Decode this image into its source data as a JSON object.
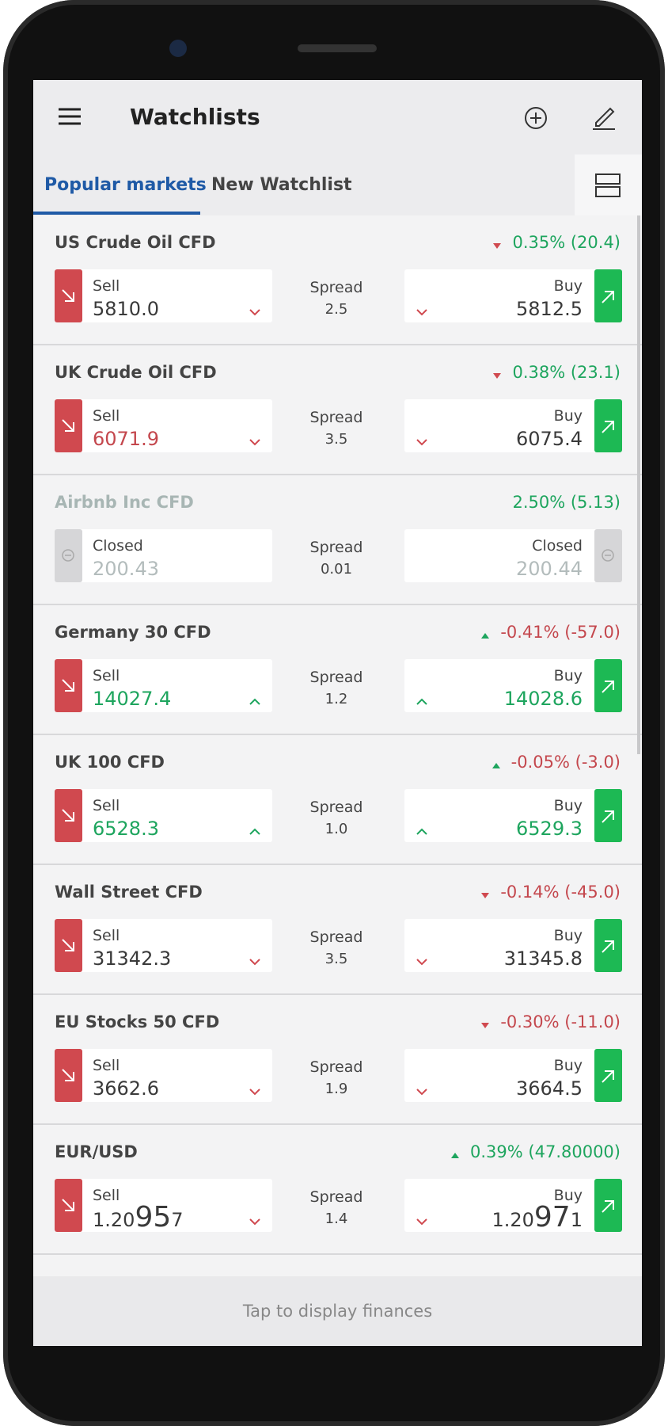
{
  "header": {
    "title": "Watchlists"
  },
  "tabs": [
    "Popular markets",
    "New Watchlist"
  ],
  "markets": [
    {
      "name": "US Crude Oil CFD",
      "trend": "down",
      "change": "0.35% (20.4)",
      "change_color": "#1ea55e",
      "sell_label": "Sell",
      "sell": "5810.0",
      "sell_color": "#3a3a3a",
      "spread_label": "Spread",
      "spread": "2.5",
      "buy_label": "Buy",
      "buy": "5812.5",
      "buy_color": "#3a3a3a",
      "chevron": "down",
      "closed": false
    },
    {
      "name": "UK Crude Oil CFD",
      "trend": "down",
      "change": "0.38% (23.1)",
      "change_color": "#1ea55e",
      "sell_label": "Sell",
      "sell": "6071.9",
      "sell_color": "#c4474d",
      "spread_label": "Spread",
      "spread": "3.5",
      "buy_label": "Buy",
      "buy": "6075.4",
      "buy_color": "#3a3a3a",
      "chevron": "down",
      "closed": false
    },
    {
      "name": "Airbnb Inc CFD",
      "trend": null,
      "change": "2.50% (5.13)",
      "change_color": "#1ea55e",
      "sell_label": "Closed",
      "sell": "200.43",
      "sell_color": "#b3bcbc",
      "spread_label": "Spread",
      "spread": "0.01",
      "buy_label": "Closed",
      "buy": "200.44",
      "buy_color": "#b3bcbc",
      "chevron": null,
      "closed": true
    },
    {
      "name": "Germany 30 CFD",
      "trend": "up",
      "change": "-0.41% (-57.0)",
      "change_color": "#c4474d",
      "sell_label": "Sell",
      "sell": "14027.4",
      "sell_color": "#1ea55e",
      "spread_label": "Spread",
      "spread": "1.2",
      "buy_label": "Buy",
      "buy": "14028.6",
      "buy_color": "#1ea55e",
      "chevron": "up",
      "closed": false
    },
    {
      "name": "UK 100 CFD",
      "trend": "up",
      "change": "-0.05% (-3.0)",
      "change_color": "#c4474d",
      "sell_label": "Sell",
      "sell": "6528.3",
      "sell_color": "#1ea55e",
      "spread_label": "Spread",
      "spread": "1.0",
      "buy_label": "Buy",
      "buy": "6529.3",
      "buy_color": "#1ea55e",
      "chevron": "up",
      "closed": false
    },
    {
      "name": "Wall Street CFD",
      "trend": "down",
      "change": "-0.14% (-45.0)",
      "change_color": "#c4474d",
      "sell_label": "Sell",
      "sell": "31342.3",
      "sell_color": "#3a3a3a",
      "spread_label": "Spread",
      "spread": "3.5",
      "buy_label": "Buy",
      "buy": "31345.8",
      "buy_color": "#3a3a3a",
      "chevron": "down",
      "closed": false
    },
    {
      "name": "EU Stocks 50 CFD",
      "trend": "down",
      "change": "-0.30% (-11.0)",
      "change_color": "#c4474d",
      "sell_label": "Sell",
      "sell": "3662.6",
      "sell_color": "#3a3a3a",
      "spread_label": "Spread",
      "spread": "1.9",
      "buy_label": "Buy",
      "buy": "3664.5",
      "buy_color": "#3a3a3a",
      "chevron": "down",
      "closed": false
    },
    {
      "name": "EUR/USD",
      "trend": "up",
      "change": "0.39% (47.80000)",
      "change_color": "#1ea55e",
      "sell_label": "Sell",
      "sell": [
        "1.20",
        "95",
        "7"
      ],
      "sell_color": "#3a3a3a",
      "spread_label": "Spread",
      "spread": "1.4",
      "buy_label": "Buy",
      "buy": [
        "1.20",
        "97",
        "1"
      ],
      "buy_color": "#3a3a3a",
      "chevron": "down",
      "closed": false
    }
  ],
  "footer": "Tap to display finances"
}
